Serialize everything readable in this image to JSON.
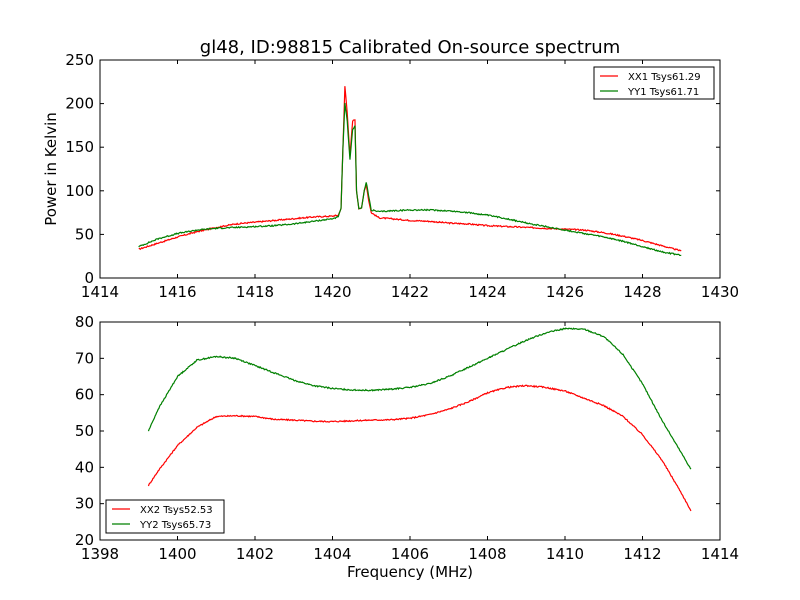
{
  "figure": {
    "title": "gl48, ID:98815 Calibrated On-source spectrum",
    "xlabel": "Frequency (MHz)",
    "series_colors": {
      "red": "#ff0000",
      "green": "#008000"
    }
  },
  "chart_data": [
    {
      "type": "line",
      "xlabel": "",
      "ylabel": "Power in Kelvin",
      "xlim": [
        1414,
        1430
      ],
      "ylim": [
        0,
        250
      ],
      "xticks": [
        1414,
        1416,
        1418,
        1420,
        1422,
        1424,
        1426,
        1428,
        1430
      ],
      "yticks": [
        0,
        50,
        100,
        150,
        200,
        250
      ],
      "grid": false,
      "legend": "top-right",
      "series": [
        {
          "name": "XX1 Tsys61.29",
          "color": "#ff0000",
          "x": [
            1415.0,
            1415.5,
            1416.0,
            1416.5,
            1417.0,
            1417.5,
            1418.0,
            1418.5,
            1419.0,
            1419.5,
            1420.0,
            1420.15,
            1420.22,
            1420.27,
            1420.32,
            1420.38,
            1420.45,
            1420.52,
            1420.58,
            1420.62,
            1420.68,
            1420.75,
            1420.82,
            1420.87,
            1420.93,
            1421.0,
            1421.2,
            1421.5,
            1422.0,
            1422.5,
            1423.0,
            1423.5,
            1424.0,
            1424.5,
            1425.0,
            1425.5,
            1426.0,
            1426.5,
            1427.0,
            1427.5,
            1428.0,
            1428.5,
            1429.0
          ],
          "y": [
            33,
            40,
            47,
            53,
            58,
            62,
            64,
            66,
            68,
            70,
            71,
            72,
            80,
            150,
            220,
            190,
            140,
            180,
            182,
            100,
            80,
            80,
            100,
            108,
            90,
            75,
            69,
            68,
            66,
            65,
            63,
            62,
            60,
            59,
            58,
            57,
            56,
            55,
            52,
            48,
            43,
            37,
            31
          ]
        },
        {
          "name": "YY1 Tsys61.71",
          "color": "#008000",
          "x": [
            1415.0,
            1415.5,
            1416.0,
            1416.5,
            1417.0,
            1417.5,
            1418.0,
            1418.5,
            1419.0,
            1419.5,
            1420.0,
            1420.15,
            1420.22,
            1420.27,
            1420.32,
            1420.38,
            1420.45,
            1420.52,
            1420.58,
            1420.62,
            1420.68,
            1420.75,
            1420.82,
            1420.87,
            1420.93,
            1421.0,
            1421.2,
            1421.5,
            1422.0,
            1422.5,
            1423.0,
            1423.5,
            1424.0,
            1424.5,
            1425.0,
            1425.5,
            1426.0,
            1426.5,
            1427.0,
            1427.5,
            1428.0,
            1428.5,
            1429.0
          ],
          "y": [
            36,
            45,
            51,
            55,
            57,
            58,
            59,
            60,
            62,
            65,
            68,
            70,
            80,
            150,
            200,
            180,
            135,
            170,
            175,
            100,
            80,
            80,
            100,
            110,
            95,
            78,
            76,
            77,
            78,
            78,
            77,
            75,
            72,
            68,
            63,
            59,
            55,
            51,
            47,
            42,
            36,
            30,
            26
          ]
        }
      ]
    },
    {
      "type": "line",
      "xlabel": "Frequency (MHz)",
      "ylabel": "",
      "xlim": [
        1398,
        1414
      ],
      "ylim": [
        20,
        80
      ],
      "xticks": [
        1398,
        1400,
        1402,
        1404,
        1406,
        1408,
        1410,
        1412,
        1414
      ],
      "yticks": [
        20,
        30,
        40,
        50,
        60,
        70,
        80
      ],
      "grid": false,
      "legend": "bottom-left",
      "series": [
        {
          "name": "XX2 Tsys52.53",
          "color": "#ff0000",
          "x": [
            1399.25,
            1399.5,
            1400.0,
            1400.5,
            1401.0,
            1401.5,
            1402.0,
            1402.5,
            1403.0,
            1403.5,
            1404.0,
            1404.5,
            1405.0,
            1405.5,
            1406.0,
            1406.5,
            1407.0,
            1407.5,
            1408.0,
            1408.5,
            1409.0,
            1409.5,
            1410.0,
            1410.5,
            1411.0,
            1411.5,
            1412.0,
            1412.5,
            1413.0,
            1413.25
          ],
          "y": [
            35,
            39,
            46,
            51,
            54,
            54.2,
            54,
            53.2,
            53,
            52.7,
            52.6,
            52.8,
            53,
            53.1,
            53.5,
            54.5,
            56,
            58,
            60.5,
            62,
            62.5,
            62,
            61,
            59,
            57,
            54,
            49,
            42,
            33,
            28
          ]
        },
        {
          "name": "YY2 Tsys65.73",
          "color": "#008000",
          "x": [
            1399.25,
            1399.5,
            1400.0,
            1400.5,
            1401.0,
            1401.5,
            1402.0,
            1402.5,
            1403.0,
            1403.5,
            1404.0,
            1404.5,
            1405.0,
            1405.5,
            1406.0,
            1406.5,
            1407.0,
            1407.5,
            1408.0,
            1408.5,
            1409.0,
            1409.5,
            1410.0,
            1410.5,
            1411.0,
            1411.5,
            1412.0,
            1412.5,
            1413.0,
            1413.25
          ],
          "y": [
            50,
            56,
            65,
            69.5,
            70.5,
            70,
            68,
            66,
            64,
            62.5,
            61.7,
            61.3,
            61.2,
            61.5,
            62,
            63,
            65,
            67.5,
            70,
            72.5,
            75,
            77,
            78.2,
            78,
            76,
            71,
            63,
            53,
            44,
            39.5
          ]
        }
      ]
    }
  ]
}
